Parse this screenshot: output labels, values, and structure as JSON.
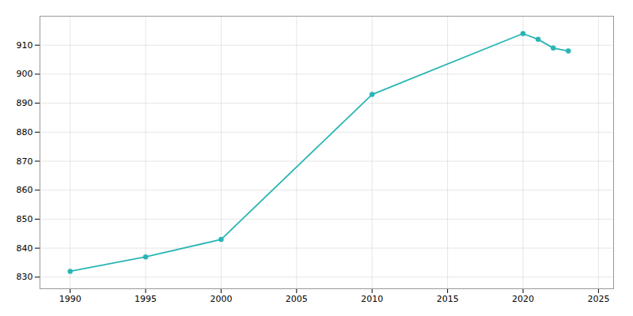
{
  "chart_data": {
    "type": "line",
    "x": [
      1990,
      1995,
      2000,
      2010,
      2020,
      2021,
      2022,
      2023
    ],
    "values": [
      832,
      837,
      843,
      893,
      914,
      912,
      909,
      908
    ],
    "color": "#2ab5b5",
    "marker": "circle",
    "xlim": [
      1988,
      2026
    ],
    "ylim": [
      826,
      920
    ],
    "xticks": [
      1990,
      1995,
      2000,
      2005,
      2010,
      2015,
      2020,
      2025
    ],
    "yticks": [
      830,
      840,
      850,
      860,
      870,
      880,
      890,
      900,
      910
    ],
    "grid": true
  }
}
